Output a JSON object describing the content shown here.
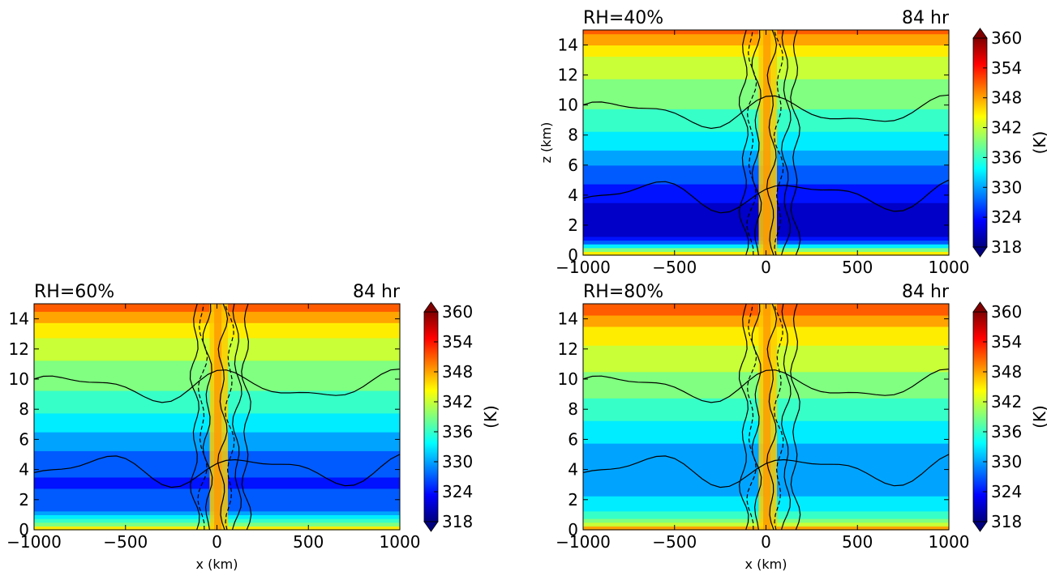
{
  "chart_data": [
    {
      "type": "heatmap",
      "panel": "top-right",
      "title_left": "RH=40%",
      "title_right": "84 hr",
      "xlabel": "",
      "ylabel": "z (km)",
      "xlim": [
        -1000,
        1000
      ],
      "ylim": [
        0,
        15
      ],
      "x_ticks": [
        "−1000",
        "−500",
        "0",
        "500",
        "1000"
      ],
      "y_ticks": [
        "0",
        "2",
        "4",
        "6",
        "8",
        "10",
        "12",
        "14"
      ],
      "colorbar": {
        "label": "(K)",
        "ticks": [
          "318",
          "324",
          "330",
          "336",
          "342",
          "348",
          "354",
          "360"
        ]
      },
      "field_profile": [
        {
          "z": 0.0,
          "theta": 351
        },
        {
          "z": 0.3,
          "theta": 340
        },
        {
          "z": 0.8,
          "theta": 329
        },
        {
          "z": 1.5,
          "theta": 321
        },
        {
          "z": 3.0,
          "theta": 321
        },
        {
          "z": 4.0,
          "theta": 324
        },
        {
          "z": 5.5,
          "theta": 327
        },
        {
          "z": 7.5,
          "theta": 333
        },
        {
          "z": 9.5,
          "theta": 337
        },
        {
          "z": 11.5,
          "theta": 340
        },
        {
          "z": 13.5,
          "theta": 344
        },
        {
          "z": 15.0,
          "theta": 350
        }
      ]
    },
    {
      "type": "heatmap",
      "panel": "bottom-left",
      "title_left": "RH=60%",
      "title_right": "84 hr",
      "xlabel": "x (km)",
      "ylabel": "",
      "xlim": [
        -1000,
        1000
      ],
      "ylim": [
        0,
        15
      ],
      "x_ticks": [
        "−1000",
        "−500",
        "0",
        "500",
        "1000"
      ],
      "y_ticks": [
        "0",
        "2",
        "4",
        "6",
        "8",
        "10",
        "12",
        "14"
      ],
      "colorbar": {
        "label": "(K)",
        "ticks": [
          "318",
          "324",
          "330",
          "336",
          "342",
          "348",
          "354",
          "360"
        ]
      },
      "field_profile": [
        {
          "z": 0.0,
          "theta": 350
        },
        {
          "z": 0.3,
          "theta": 340
        },
        {
          "z": 0.8,
          "theta": 333
        },
        {
          "z": 1.5,
          "theta": 327
        },
        {
          "z": 3.0,
          "theta": 325
        },
        {
          "z": 4.0,
          "theta": 326
        },
        {
          "z": 5.5,
          "theta": 329
        },
        {
          "z": 7.5,
          "theta": 334
        },
        {
          "z": 9.5,
          "theta": 338
        },
        {
          "z": 11.5,
          "theta": 341
        },
        {
          "z": 13.5,
          "theta": 345
        },
        {
          "z": 15.0,
          "theta": 352
        }
      ]
    },
    {
      "type": "heatmap",
      "panel": "bottom-right",
      "title_left": "RH=80%",
      "title_right": "84 hr",
      "xlabel": "x (km)",
      "ylabel": "",
      "xlim": [
        -1000,
        1000
      ],
      "ylim": [
        0,
        15
      ],
      "x_ticks": [
        "−1000",
        "−500",
        "0",
        "500",
        "1000"
      ],
      "y_ticks": [
        "0",
        "2",
        "4",
        "6",
        "8",
        "10",
        "12",
        "14"
      ],
      "colorbar": {
        "label": "(K)",
        "ticks": [
          "318",
          "324",
          "330",
          "336",
          "342",
          "348",
          "354",
          "360"
        ]
      },
      "field_profile": [
        {
          "z": 0.0,
          "theta": 350
        },
        {
          "z": 0.3,
          "theta": 342
        },
        {
          "z": 0.8,
          "theta": 337
        },
        {
          "z": 1.5,
          "theta": 333
        },
        {
          "z": 3.0,
          "theta": 330
        },
        {
          "z": 4.0,
          "theta": 330
        },
        {
          "z": 5.5,
          "theta": 331
        },
        {
          "z": 7.5,
          "theta": 335
        },
        {
          "z": 9.5,
          "theta": 339
        },
        {
          "z": 11.5,
          "theta": 342
        },
        {
          "z": 13.5,
          "theta": 346
        },
        {
          "z": 15.0,
          "theta": 352
        }
      ]
    }
  ]
}
